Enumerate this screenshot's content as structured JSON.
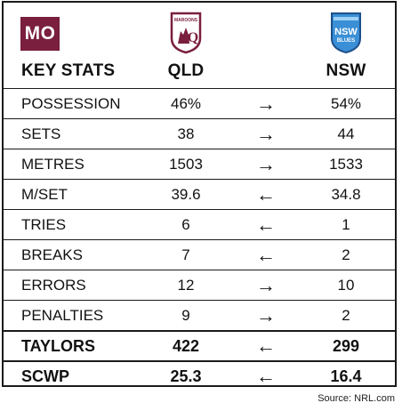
{
  "badge": "MO",
  "header": {
    "key_stats": "KEY STATS",
    "team1": "QLD",
    "team2": "NSW"
  },
  "logos": {
    "qld": {
      "text": "MAROONS",
      "color": "#7a1f3d"
    },
    "nsw": {
      "text1": "NSW",
      "text2": "BLUES",
      "color": "#3a8fd6"
    }
  },
  "rows": [
    {
      "label": "POSSESSION",
      "qld": "46%",
      "arrow": "→",
      "nsw": "54%"
    },
    {
      "label": "SETS",
      "qld": "38",
      "arrow": "→",
      "nsw": "44"
    },
    {
      "label": "METRES",
      "qld": "1503",
      "arrow": "→",
      "nsw": "1533"
    },
    {
      "label": "M/SET",
      "qld": "39.6",
      "arrow": "←",
      "nsw": "34.8"
    },
    {
      "label": "TRIES",
      "qld": "6",
      "arrow": "←",
      "nsw": "1"
    },
    {
      "label": "BREAKS",
      "qld": "7",
      "arrow": "←",
      "nsw": "2"
    },
    {
      "label": "ERRORS",
      "qld": "12",
      "arrow": "→",
      "nsw": "10"
    },
    {
      "label": "PENALTIES",
      "qld": "9",
      "arrow": "→",
      "nsw": "2"
    },
    {
      "label": "TAYLORS",
      "qld": "422",
      "arrow": "←",
      "nsw": "299"
    },
    {
      "label": "SCWP",
      "qld": "25.3",
      "arrow": "←",
      "nsw": "16.4"
    }
  ],
  "source": "Source: NRL.com"
}
